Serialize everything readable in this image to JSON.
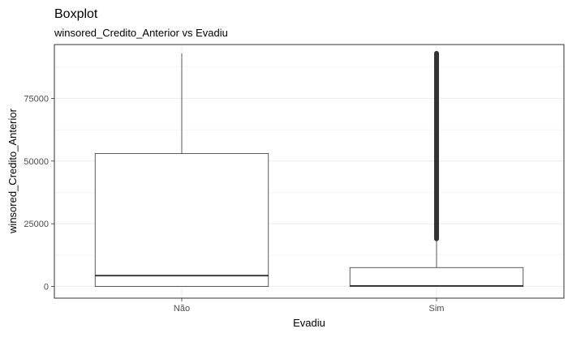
{
  "chart_data": {
    "type": "boxplot",
    "title": "Boxplot",
    "subtitle": "winsored_Credito_Anterior vs Evadiu",
    "xlabel": "Evadiu",
    "ylabel": "winsored_Credito_Anterior",
    "categories": [
      "Não",
      "Sim"
    ],
    "y_ticks": [
      0,
      25000,
      50000,
      75000
    ],
    "y_tick_labels": [
      "0",
      "25000",
      "50000",
      "75000"
    ],
    "ylim": [
      -4700,
      96500
    ],
    "grid": true,
    "boxes": [
      {
        "category": "Não",
        "min": 0,
        "q1": 0,
        "median": 4300,
        "q3": 53000,
        "whisker_low": 0,
        "whisker_high": 93000,
        "outliers_from": null,
        "outliers_to": null
      },
      {
        "category": "Sim",
        "min": 0,
        "q1": 0,
        "median": 200,
        "q3": 7500,
        "whisker_low": 0,
        "whisker_high": 19000,
        "outliers_from": 19000,
        "outliers_to": 93000
      }
    ]
  }
}
